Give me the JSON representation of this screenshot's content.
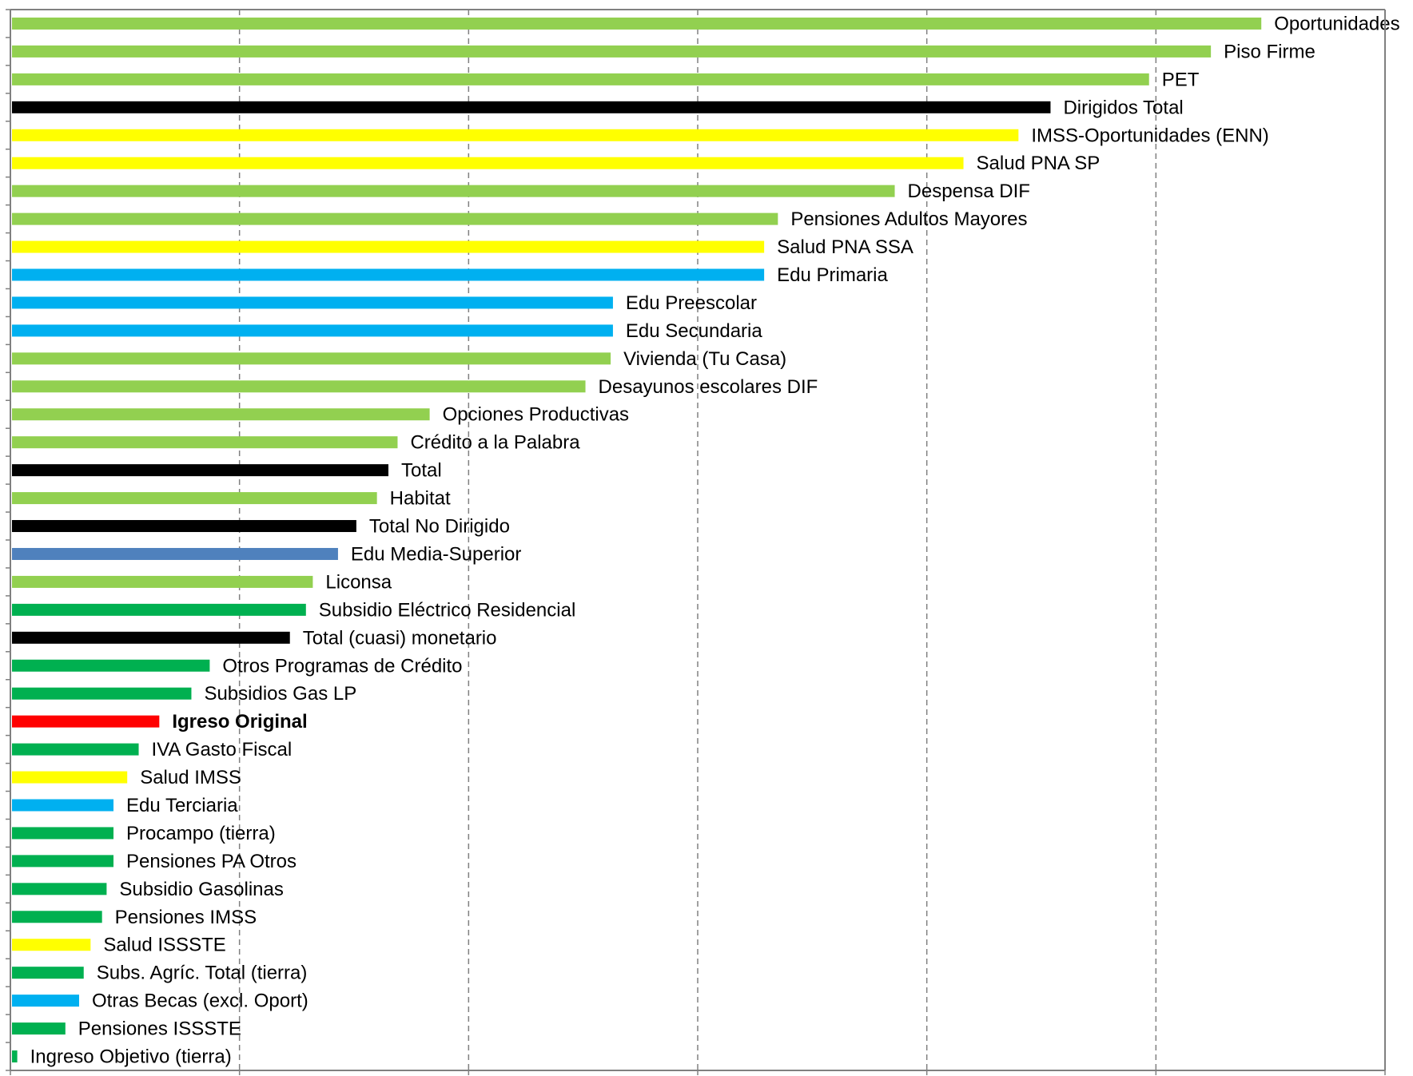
{
  "colors": {
    "light_green": "#92d050",
    "green": "#00b050",
    "black": "#000000",
    "yellow": "#ffff00",
    "cyan": "#00b0f0",
    "steel_blue": "#4f81bd",
    "red": "#ff0000",
    "grid": "#808080",
    "axis": "#808080"
  },
  "chart_data": {
    "type": "bar",
    "orientation": "horizontal",
    "title": "",
    "xlabel": "",
    "ylabel": "",
    "xlim": [
      0,
      6
    ],
    "grid": {
      "x": true,
      "style": "dashed"
    },
    "legend": "none",
    "tick_labels_shown": false,
    "series": [
      {
        "categories": [
          "Oportunidades",
          "Piso Firme",
          "PET",
          "Dirigidos Total",
          "IMSS-Oportunidades (ENN)",
          "Salud PNA SP",
          "Despensa DIF",
          "Pensiones Adultos Mayores",
          "Salud PNA SSA",
          "Edu Primaria",
          "Edu Preescolar",
          "Edu Secundaria",
          "Vivienda (Tu Casa)",
          "Desayunos escolares DIF",
          "Opciones Productivas",
          "Crédito a la Palabra",
          "Total",
          "Habitat",
          "Total No Dirigido",
          "Edu Media-Superior",
          "Liconsa",
          "Subsidio Eléctrico Residencial",
          "Total (cuasi) monetario",
          "Otros Programas de Crédito",
          "Subsidios Gas LP",
          "Igreso Original",
          "IVA Gasto Fiscal",
          "Salud IMSS",
          "Edu Terciaria",
          "Procampo (tierra)",
          "Pensiones PA Otros",
          "Subsidio Gasolinas",
          "Pensiones IMSS",
          "Salud ISSSTE",
          "Subs. Agríc. Total (tierra)",
          "Otras Becas (excl. Oport)",
          "Pensiones ISSSTE",
          "Ingreso Objetivo (tierra)"
        ],
        "values": [
          5.46,
          5.24,
          4.97,
          4.54,
          4.4,
          4.16,
          3.86,
          3.35,
          3.29,
          3.29,
          2.63,
          2.63,
          2.62,
          2.51,
          1.83,
          1.69,
          1.65,
          1.6,
          1.51,
          1.43,
          1.32,
          1.29,
          1.22,
          0.87,
          0.79,
          0.65,
          0.56,
          0.51,
          0.45,
          0.45,
          0.45,
          0.42,
          0.4,
          0.35,
          0.32,
          0.3,
          0.24,
          0.03
        ],
        "colors": [
          "light_green",
          "light_green",
          "light_green",
          "black",
          "yellow",
          "yellow",
          "light_green",
          "light_green",
          "yellow",
          "cyan",
          "cyan",
          "cyan",
          "light_green",
          "light_green",
          "light_green",
          "light_green",
          "black",
          "light_green",
          "black",
          "steel_blue",
          "light_green",
          "green",
          "black",
          "green",
          "green",
          "red",
          "green",
          "yellow",
          "cyan",
          "green",
          "green",
          "green",
          "green",
          "yellow",
          "green",
          "cyan",
          "green",
          "green"
        ],
        "bold": [
          "Igreso Original"
        ]
      }
    ]
  }
}
